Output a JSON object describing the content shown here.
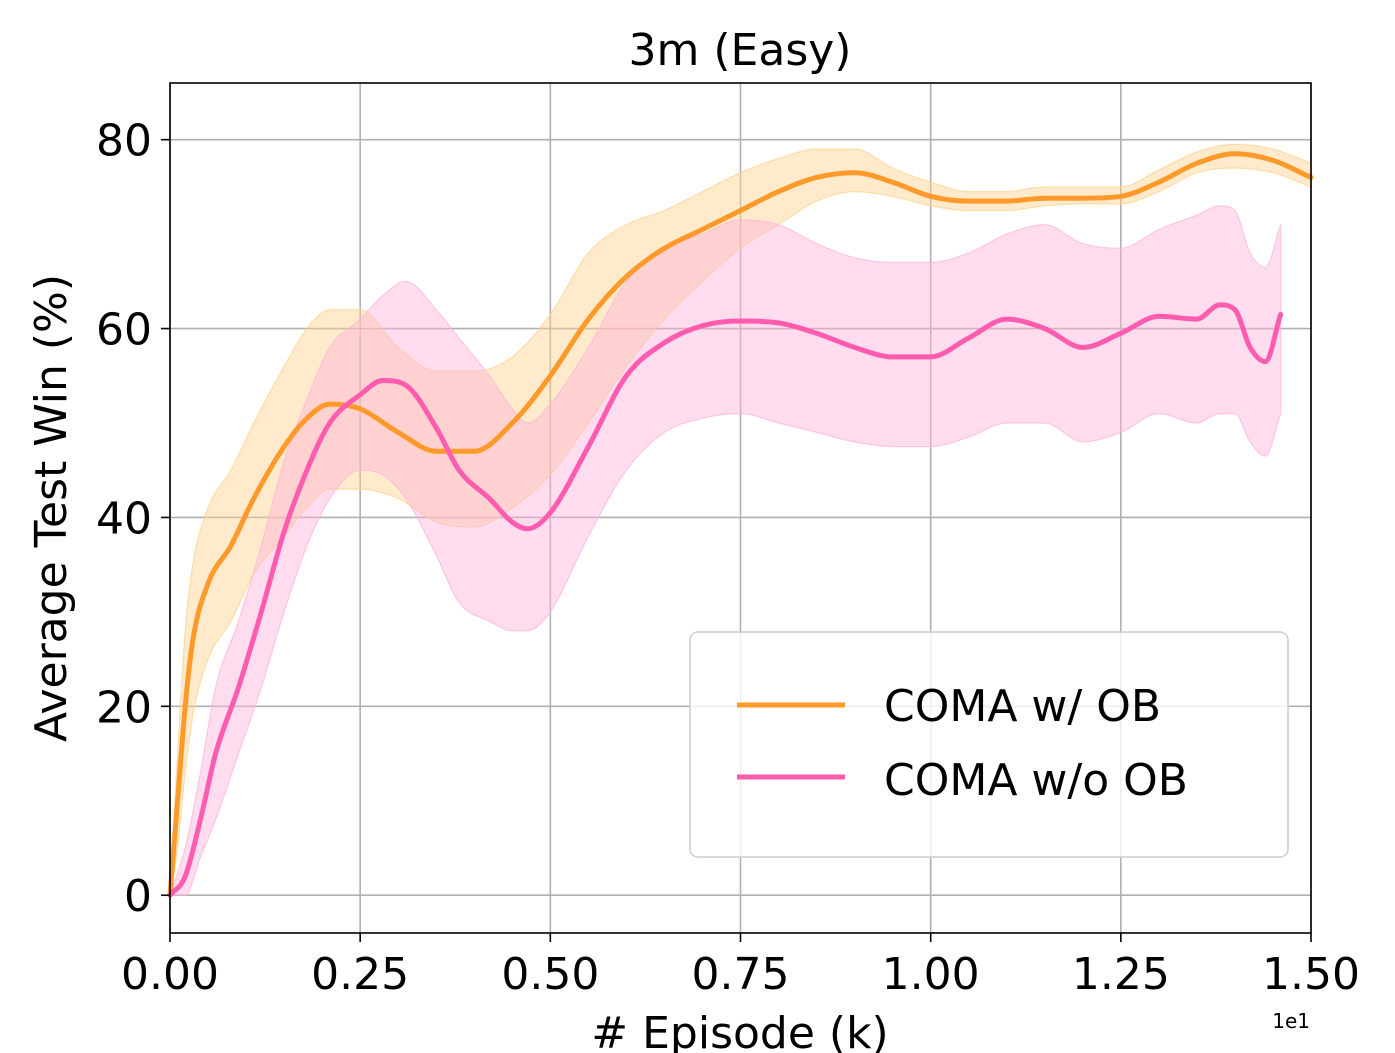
{
  "chart_data": {
    "type": "line",
    "title": "3m (Easy)",
    "xlabel": "# Episode (k)",
    "ylabel": "Average Test Win (%)",
    "x_offset_text": "1e1",
    "xlim": [
      0.0,
      1.5
    ],
    "ylim": [
      -4,
      86
    ],
    "x_ticks": [
      0.0,
      0.25,
      0.5,
      0.75,
      1.0,
      1.25,
      1.5
    ],
    "x_tick_labels": [
      "0.00",
      "0.25",
      "0.50",
      "0.75",
      "1.00",
      "1.25",
      "1.50"
    ],
    "y_ticks": [
      0,
      20,
      40,
      60,
      80
    ],
    "y_tick_labels": [
      "0",
      "20",
      "40",
      "60",
      "80"
    ],
    "grid": true,
    "legend_position": "lower-right",
    "series": [
      {
        "name": "COMA w/ OB",
        "color": "#ff9a2a",
        "band_color": "#ffd28c",
        "x": [
          0.0,
          0.01,
          0.02,
          0.03,
          0.05,
          0.08,
          0.11,
          0.15,
          0.18,
          0.21,
          0.25,
          0.3,
          0.35,
          0.4,
          0.45,
          0.5,
          0.55,
          0.6,
          0.65,
          0.7,
          0.75,
          0.8,
          0.85,
          0.9,
          0.95,
          1.0,
          1.05,
          1.1,
          1.15,
          1.2,
          1.25,
          1.3,
          1.35,
          1.4,
          1.45,
          1.5
        ],
        "mean": [
          0,
          10,
          20,
          27,
          33,
          37,
          42,
          47.5,
          50.5,
          52,
          51.5,
          49,
          47,
          47,
          50,
          55,
          61,
          65.5,
          68.5,
          70.5,
          72.5,
          74.5,
          76,
          76.5,
          75.5,
          74,
          73.5,
          73.5,
          73.8,
          73.8,
          74,
          75.5,
          77.5,
          78.5,
          77.8,
          76
        ],
        "lower": [
          0,
          5,
          13,
          19,
          25,
          29,
          34,
          38,
          41,
          43,
          43,
          42,
          39.5,
          39,
          41,
          44.5,
          50,
          56,
          61,
          65,
          68.5,
          71,
          73.5,
          74.5,
          74,
          73,
          72.5,
          72.5,
          73,
          73.2,
          73.2,
          74.5,
          76.5,
          77,
          76.5,
          75
        ],
        "upper": [
          0,
          15,
          28,
          35,
          41,
          45,
          50,
          56,
          60,
          62,
          62,
          58,
          55.5,
          55.5,
          57,
          61.5,
          68,
          71,
          72.5,
          74.5,
          76.5,
          78,
          79,
          79,
          77,
          75.5,
          74.5,
          74.5,
          75,
          75,
          75,
          76.8,
          78.7,
          79.5,
          79,
          77.5
        ]
      },
      {
        "name": "COMA w/o OB",
        "color": "#ff5caf",
        "band_color": "#ffb3d9",
        "x": [
          0.0,
          0.02,
          0.04,
          0.06,
          0.09,
          0.12,
          0.15,
          0.18,
          0.21,
          0.25,
          0.28,
          0.31,
          0.35,
          0.38,
          0.42,
          0.45,
          0.47,
          0.5,
          0.55,
          0.6,
          0.65,
          0.7,
          0.75,
          0.8,
          0.85,
          0.9,
          0.95,
          1.0,
          1.05,
          1.1,
          1.15,
          1.2,
          1.25,
          1.3,
          1.35,
          1.38,
          1.4,
          1.42,
          1.44,
          1.46
        ],
        "mean": [
          0,
          2,
          8,
          15,
          22,
          30,
          38.5,
          45,
          50,
          53,
          54.5,
          54,
          49.5,
          45,
          42,
          39.5,
          38.8,
          40.5,
          47.5,
          55,
          58.5,
          60.3,
          60.8,
          60.6,
          59.5,
          58,
          57,
          57,
          59,
          61,
          60,
          58,
          59.5,
          61.3,
          61,
          62.5,
          62,
          58,
          56.5,
          61.5
        ],
        "lower": [
          0,
          0,
          4,
          8,
          15,
          22,
          30,
          37,
          42,
          45,
          44.5,
          42,
          36,
          31,
          29,
          28,
          28,
          30,
          38,
          45,
          49,
          50.5,
          51,
          50,
          49,
          48,
          47.5,
          47.5,
          48.5,
          50,
          50,
          48,
          49,
          51,
          50,
          51,
          51,
          48,
          46.5,
          51
        ],
        "upper": [
          0,
          5,
          13,
          22,
          29,
          37,
          46,
          52.5,
          58,
          61,
          63.5,
          65,
          62,
          59,
          55,
          51.5,
          50,
          52,
          58,
          65,
          68.5,
          70,
          71.5,
          71,
          69,
          67.5,
          67,
          67,
          68,
          70,
          71,
          69,
          68.5,
          70.5,
          72,
          73,
          72.5,
          68,
          66.5,
          71
        ]
      }
    ]
  }
}
